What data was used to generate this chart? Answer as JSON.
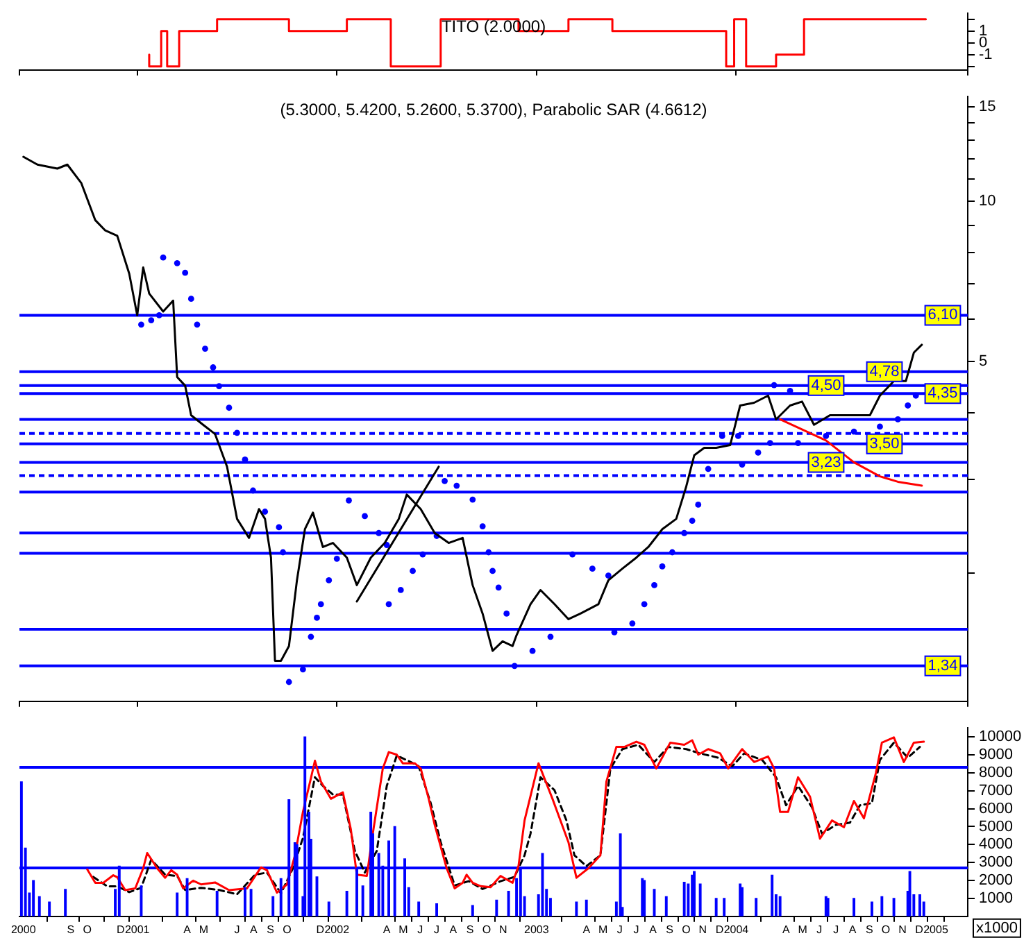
{
  "chart_data": [
    {
      "type": "step",
      "title": "TITO (2.0000)",
      "color": "#ff0000",
      "x": [
        2001.06,
        2001.12,
        2001.15,
        2001.21,
        2001.4,
        2001.76,
        2002.05,
        2002.27,
        2002.52,
        2002.91,
        2003.16,
        2003.38,
        2003.95,
        2003.99,
        2004.05,
        2004.2,
        2004.34,
        2004.73,
        2004.95
      ],
      "values": [
        -1,
        -2,
        1,
        -2,
        1,
        2,
        1,
        2,
        -2,
        2,
        1,
        2,
        1,
        -2,
        2,
        -2,
        -1,
        2,
        2
      ],
      "xlim": [
        2000.41,
        2005.16
      ],
      "ylim": [
        -2.3,
        2.5
      ],
      "yticks": [
        {
          "value": 2,
          "label": null
        },
        1,
        0,
        -1,
        {
          "value": -2,
          "label": null
        }
      ],
      "tick_labels": "y"
    },
    {
      "type": "line",
      "title": "(5.3000, 5.4200, 5.2600, 5.3700), Parabolic SAR (4.6612)",
      "log": "y",
      "xlim": [
        2000.41,
        2005.16
      ],
      "ylim": [
        1.15,
        15.7
      ],
      "yticks": [
        15,
        {
          "value": 14,
          "label": null
        },
        {
          "value": 13,
          "label": null
        },
        {
          "value": 12,
          "label": null
        },
        {
          "value": 11,
          "label": null
        },
        10,
        {
          "value": 9,
          "label": null
        },
        {
          "value": 8,
          "label": null
        },
        {
          "value": 7,
          "label": null
        },
        {
          "value": 6,
          "label": null
        },
        5,
        {
          "value": 4,
          "label": null
        },
        {
          "value": 3,
          "label": null
        },
        {
          "value": 2,
          "label": null
        }
      ],
      "tick_labels": "y",
      "series": [
        {
          "type": "line",
          "color": "#000000",
          "x": [
            2000.43,
            2000.5,
            2000.6,
            2000.65,
            2000.72,
            2000.79,
            2000.84,
            2000.9,
            2000.96,
            2001.0,
            2001.03,
            2001.06,
            2001.13,
            2001.18,
            2001.2,
            2001.24,
            2001.27,
            2001.33,
            2001.39,
            2001.45,
            2001.5,
            2001.56,
            2001.61,
            2001.64,
            2001.67,
            2001.69,
            2001.72,
            2001.76,
            2001.8,
            2001.84,
            2001.88,
            2001.93,
            2001.98,
            2002.05,
            2002.1,
            2002.17,
            2002.24,
            2002.31,
            2002.35,
            2002.42,
            2002.49,
            2002.56,
            2002.63,
            2002.68,
            2002.73,
            2002.78,
            2002.83,
            2002.88,
            2002.9,
            2002.97,
            2003.02,
            2003.09,
            2003.16,
            2003.22,
            2003.31,
            2003.36,
            2003.43,
            2003.5,
            2003.56,
            2003.63,
            2003.7,
            2003.75,
            2003.79,
            2003.84,
            2003.9,
            2003.97,
            2004.02,
            2004.09,
            2004.16,
            2004.2,
            2004.27,
            2004.33,
            2004.39,
            2004.47,
            2004.54,
            2004.6,
            2004.67,
            2004.72,
            2004.79,
            2004.85,
            2004.89,
            2004.93
          ],
          "values": [
            12.1,
            11.7,
            11.5,
            11.7,
            10.8,
            9.2,
            8.8,
            8.6,
            7.3,
            6.1,
            7.5,
            6.7,
            6.2,
            6.5,
            4.67,
            4.5,
            3.96,
            3.8,
            3.65,
            3.17,
            2.53,
            2.33,
            2.64,
            2.53,
            2.14,
            1.37,
            1.37,
            1.46,
            1.94,
            2.42,
            2.6,
            2.24,
            2.28,
            2.14,
            1.9,
            2.14,
            2.28,
            2.53,
            2.81,
            2.64,
            2.38,
            2.28,
            2.33,
            1.9,
            1.68,
            1.43,
            1.49,
            1.46,
            1.53,
            1.75,
            1.86,
            1.75,
            1.64,
            1.68,
            1.75,
            1.94,
            2.04,
            2.14,
            2.24,
            2.42,
            2.53,
            2.91,
            3.33,
            3.44,
            3.44,
            3.48,
            4.13,
            4.18,
            4.31,
            3.89,
            4.13,
            4.2,
            3.8,
            3.96,
            3.96,
            3.96,
            3.96,
            4.31,
            4.59,
            4.59,
            5.19,
            5.37
          ]
        },
        {
          "type": "scatter",
          "color": "#0000ff",
          "marker": "circle",
          "x": [
            2001.02,
            2001.07,
            2001.11,
            2001.13,
            2001.2,
            2001.24,
            2001.27,
            2001.3,
            2001.34,
            2001.38,
            2001.41,
            2001.46,
            2001.5,
            2001.54,
            2001.58,
            2001.64,
            2001.71,
            2001.73,
            2001.76,
            2001.83,
            2001.87,
            2001.9,
            2001.92,
            2001.96,
            2002.0,
            2002.06,
            2002.14,
            2002.21,
            2002.25,
            2002.26,
            2002.32,
            2002.38,
            2002.43,
            2002.5,
            2002.54,
            2002.6,
            2002.68,
            2002.73,
            2002.76,
            2002.78,
            2002.81,
            2002.85,
            2002.89,
            2002.98,
            2003.07,
            2003.18,
            2003.28,
            2003.36,
            2003.39,
            2003.48,
            2003.54,
            2003.59,
            2003.63,
            2003.68,
            2003.74,
            2003.78,
            2003.81,
            2003.86,
            2003.93,
            2004.01,
            2004.03,
            2004.11,
            2004.17,
            2004.19,
            2004.27,
            2004.31,
            2004.45,
            2004.59,
            2004.72,
            2004.81,
            2004.86,
            2004.9
          ],
          "values": [
            5.86,
            5.97,
            6.1,
            7.83,
            7.64,
            7.33,
            6.55,
            5.86,
            5.28,
            4.87,
            4.49,
            4.09,
            3.67,
            3.27,
            2.86,
            2.61,
            2.44,
            2.19,
            1.25,
            1.32,
            1.52,
            1.65,
            1.75,
            1.94,
            2.13,
            2.74,
            2.56,
            2.38,
            2.26,
            1.75,
            1.86,
            2.02,
            2.17,
            2.35,
            2.98,
            2.92,
            2.75,
            2.45,
            2.19,
            2.02,
            1.88,
            1.68,
            1.34,
            1.43,
            1.52,
            2.17,
            2.04,
            1.98,
            1.55,
            1.61,
            1.75,
            1.9,
            2.06,
            2.19,
            2.38,
            2.51,
            2.69,
            3.14,
            3.62,
            3.62,
            3.2,
            3.37,
            3.51,
            4.51,
            4.4,
            3.51,
            3.62,
            3.69,
            3.77,
            3.89,
            4.13,
            4.31
          ]
        },
        {
          "type": "line",
          "color": "#000000",
          "x": [
            2002.1,
            2002.51
          ],
          "values": [
            1.77,
            3.17
          ]
        },
        {
          "type": "line",
          "color": "#ff0000",
          "x": [
            2004.22,
            2004.45,
            2004.59,
            2004.72,
            2004.81,
            2004.93
          ],
          "values": [
            3.89,
            3.55,
            3.23,
            3.04,
            2.97,
            2.92
          ]
        }
      ],
      "ref_lines": [
        {
          "axis": "y",
          "value": 6.1,
          "label": "6,10",
          "color": "#0000ff"
        },
        {
          "axis": "y",
          "value": 4.78,
          "label": "4,78",
          "color": "#0000ff"
        },
        {
          "axis": "y",
          "value": 4.5,
          "label": "4,50",
          "color": "#0000ff"
        },
        {
          "axis": "y",
          "value": 4.35,
          "label": "4,35",
          "color": "#0000ff"
        },
        {
          "axis": "y",
          "value": 3.89,
          "color": "#0000ff"
        },
        {
          "axis": "y",
          "value": 3.66,
          "color": "#0000ff",
          "line_style": "dashed"
        },
        {
          "axis": "y",
          "value": 3.5,
          "label": "3,50",
          "color": "#0000ff"
        },
        {
          "axis": "y",
          "value": 3.23,
          "label": "3,23",
          "color": "#0000ff"
        },
        {
          "axis": "y",
          "value": 3.05,
          "color": "#0000ff",
          "line_style": "dashed"
        },
        {
          "axis": "y",
          "value": 2.84,
          "color": "#0000ff"
        },
        {
          "axis": "y",
          "value": 2.38,
          "color": "#0000ff"
        },
        {
          "axis": "y",
          "value": 2.18,
          "color": "#0000ff"
        },
        {
          "axis": "y",
          "value": 1.57,
          "color": "#0000ff"
        },
        {
          "axis": "y",
          "value": 1.34,
          "label": "1,34",
          "color": "#0000ff"
        }
      ]
    },
    {
      "type": "bar",
      "xlim": [
        2000.41,
        2005.16
      ],
      "ylim": [
        0,
        10500
      ],
      "yticks": [
        1000,
        2000,
        3000,
        4000,
        5000,
        6000,
        7000,
        8000,
        9000,
        10000
      ],
      "xticks": [
        {
          "value": 2000.43,
          "label": "2000"
        },
        {
          "value": 2000.667,
          "label": "S"
        },
        {
          "value": 2000.75,
          "label": "O"
        },
        {
          "value": 2000.917,
          "label": "D"
        },
        2001,
        {
          "value": 2001.25,
          "label": "A"
        },
        {
          "value": 2001.333,
          "label": "M"
        },
        {
          "value": 2001.5,
          "label": "J"
        },
        {
          "value": 2001.583,
          "label": "A"
        },
        {
          "value": 2001.667,
          "label": "S"
        },
        {
          "value": 2001.75,
          "label": "O"
        },
        {
          "value": 2001.917,
          "label": "D"
        },
        2002,
        {
          "value": 2002.25,
          "label": "A"
        },
        {
          "value": 2002.333,
          "label": "M"
        },
        {
          "value": 2002.417,
          "label": "J"
        },
        {
          "value": 2002.5,
          "label": "J"
        },
        {
          "value": 2002.583,
          "label": "A"
        },
        {
          "value": 2002.667,
          "label": "S"
        },
        {
          "value": 2002.75,
          "label": "O"
        },
        {
          "value": 2002.833,
          "label": "N"
        },
        2003,
        {
          "value": 2003.25,
          "label": "A"
        },
        {
          "value": 2003.333,
          "label": "M"
        },
        {
          "value": 2003.417,
          "label": "J"
        },
        {
          "value": 2003.5,
          "label": "J"
        },
        {
          "value": 2003.583,
          "label": "A"
        },
        {
          "value": 2003.667,
          "label": "S"
        },
        {
          "value": 2003.75,
          "label": "O"
        },
        {
          "value": 2003.833,
          "label": "N"
        },
        {
          "value": 2003.917,
          "label": "D"
        },
        2004,
        {
          "value": 2004.25,
          "label": "A"
        },
        {
          "value": 2004.333,
          "label": "M"
        },
        {
          "value": 2004.417,
          "label": "J"
        },
        {
          "value": 2004.5,
          "label": "J"
        },
        {
          "value": 2004.583,
          "label": "A"
        },
        {
          "value": 2004.667,
          "label": "S"
        },
        {
          "value": 2004.75,
          "label": "O"
        },
        {
          "value": 2004.833,
          "label": "N"
        },
        {
          "value": 2004.917,
          "label": "D"
        },
        2005
      ],
      "annotations": [
        "x1000"
      ],
      "series": [
        {
          "type": "bar",
          "color": "#0000ff",
          "x": [
            2000.42,
            2000.44,
            2000.46,
            2000.48,
            2000.51,
            2000.56,
            2000.64,
            2000.89,
            2000.91,
            2001.02,
            2001.2,
            2001.25,
            2001.4,
            2001.54,
            2001.57,
            2001.68,
            2001.72,
            2001.76,
            2001.79,
            2001.8,
            2001.83,
            2001.84,
            2001.86,
            2001.87,
            2001.9,
            2001.96,
            2002.05,
            2002.1,
            2002.13,
            2002.17,
            2002.18,
            2002.21,
            2002.23,
            2002.26,
            2002.29,
            2002.34,
            2002.36,
            2002.41,
            2002.5,
            2002.68,
            2002.8,
            2002.86,
            2002.9,
            2002.92,
            2002.94,
            2003.01,
            2003.03,
            2003.05,
            2003.07,
            2003.2,
            2003.25,
            2003.4,
            2003.42,
            2003.43,
            2003.53,
            2003.54,
            2003.59,
            2003.65,
            2003.74,
            2003.76,
            2003.78,
            2003.79,
            2003.82,
            2003.9,
            2003.94,
            2004.02,
            2004.03,
            2004.1,
            2004.18,
            2004.2,
            2004.22,
            2004.45,
            2004.46,
            2004.59,
            2004.68,
            2004.73,
            2004.79,
            2004.86,
            2004.87,
            2004.89,
            2004.92,
            2004.94
          ],
          "values": [
            7500,
            3800,
            1300,
            2000,
            1100,
            800,
            1500,
            1500,
            2800,
            1700,
            1300,
            2100,
            1400,
            1600,
            1500,
            1100,
            2100,
            6500,
            4100,
            4000,
            1100,
            10000,
            5800,
            4300,
            2200,
            800,
            1400,
            2700,
            1700,
            5800,
            4600,
            3500,
            2800,
            4200,
            5000,
            3200,
            1600,
            800,
            700,
            600,
            900,
            1400,
            2100,
            2600,
            1100,
            1200,
            3500,
            1500,
            1000,
            800,
            900,
            800,
            4600,
            500,
            2100,
            2000,
            1500,
            1100,
            1900,
            1800,
            2300,
            2500,
            1800,
            1000,
            1000,
            1800,
            1600,
            1000,
            2300,
            1200,
            1100,
            1100,
            1000,
            1000,
            800,
            1100,
            1000,
            1400,
            2500,
            1200,
            1200,
            800
          ]
        },
        {
          "type": "line",
          "color": "#ff0000",
          "x": [
            2000.75,
            2000.79,
            2000.83,
            2000.88,
            2000.9,
            2000.94,
            2000.99,
            2001.03,
            2001.05,
            2001.1,
            2001.14,
            2001.17,
            2001.2,
            2001.23,
            2001.28,
            2001.32,
            2001.39,
            2001.46,
            2001.55,
            2001.62,
            2001.65,
            2001.7,
            2001.75,
            2001.79,
            2001.83,
            2001.87,
            2001.89,
            2001.92,
            2001.97,
            2002.03,
            2002.07,
            2002.1,
            2002.15,
            2002.18,
            2002.23,
            2002.26,
            2002.3,
            2002.33,
            2002.39,
            2002.42,
            2002.46,
            2002.49,
            2002.55,
            2002.59,
            2002.63,
            2002.65,
            2002.68,
            2002.72,
            2002.77,
            2002.82,
            2002.88,
            2002.91,
            2002.94,
            2003.01,
            2003.08,
            2003.12,
            2003.16,
            2003.2,
            2003.26,
            2003.32,
            2003.35,
            2003.4,
            2003.44,
            2003.5,
            2003.54,
            2003.6,
            2003.67,
            2003.74,
            2003.78,
            2003.81,
            2003.86,
            2003.92,
            2003.96,
            2004.03,
            2004.09,
            2004.16,
            2004.19,
            2004.22,
            2004.26,
            2004.31,
            2004.37,
            2004.42,
            2004.48,
            2004.54,
            2004.59,
            2004.64,
            2004.7,
            2004.73,
            2004.79,
            2004.84,
            2004.89,
            2004.94
          ],
          "values": [
            2610,
            1870,
            1870,
            2290,
            2180,
            1460,
            1560,
            2680,
            3530,
            2680,
            2150,
            2570,
            2320,
            1560,
            1990,
            1780,
            1890,
            1460,
            1560,
            2730,
            2570,
            1320,
            1780,
            3400,
            5820,
            7700,
            8670,
            7510,
            6550,
            6910,
            4850,
            2320,
            2250,
            4610,
            8240,
            9150,
            9010,
            8530,
            8530,
            8240,
            6550,
            5100,
            2680,
            1560,
            1870,
            2320,
            1870,
            1680,
            1630,
            2250,
            1870,
            2820,
            5340,
            8530,
            6550,
            5340,
            4130,
            2150,
            2680,
            3400,
            7510,
            9440,
            9440,
            9730,
            9560,
            8240,
            9680,
            9560,
            9810,
            9010,
            9320,
            9080,
            8240,
            9320,
            8600,
            8910,
            8240,
            5820,
            5820,
            7750,
            6670,
            4330,
            5340,
            4970,
            6430,
            5460,
            7990,
            9680,
            9970,
            8600,
            9680,
            9730
          ]
        },
        {
          "type": "line",
          "color": "#000000",
          "line_style": "dashed",
          "x": [
            2000.78,
            2000.85,
            2000.9,
            2000.96,
            2001.02,
            2001.07,
            2001.14,
            2001.2,
            2001.24,
            2001.32,
            2001.41,
            2001.5,
            2001.59,
            2001.65,
            2001.72,
            2001.78,
            2001.83,
            2001.89,
            2001.93,
            2001.98,
            2002.03,
            2002.09,
            2002.14,
            2002.2,
            2002.25,
            2002.3,
            2002.37,
            2002.41,
            2002.47,
            2002.52,
            2002.59,
            2002.66,
            2002.73,
            2002.82,
            2002.89,
            2002.94,
            2002.97,
            2003.02,
            2003.09,
            2003.15,
            2003.19,
            2003.25,
            2003.32,
            2003.37,
            2003.43,
            2003.51,
            2003.59,
            2003.66,
            2003.75,
            2003.82,
            2003.91,
            2003.98,
            2004.04,
            2004.13,
            2004.2,
            2004.25,
            2004.31,
            2004.38,
            2004.43,
            2004.5,
            2004.57,
            2004.62,
            2004.68,
            2004.72,
            2004.79,
            2004.86,
            2004.92
          ],
          "values": [
            2200,
            1670,
            1670,
            1350,
            1590,
            3160,
            2320,
            2250,
            1470,
            1590,
            1470,
            1230,
            2320,
            2440,
            1280,
            2680,
            4370,
            7750,
            7270,
            6790,
            6790,
            3650,
            2440,
            3650,
            7270,
            8960,
            8600,
            8360,
            6310,
            4130,
            1720,
            1960,
            1520,
            1960,
            2200,
            3400,
            4610,
            7750,
            7030,
            5340,
            3400,
            2800,
            3400,
            8240,
            9320,
            9560,
            8600,
            9440,
            9320,
            9080,
            8840,
            8360,
            9080,
            8720,
            7750,
            6190,
            7270,
            6070,
            4610,
            5100,
            5220,
            6190,
            6310,
            8720,
            9680,
            8840,
            9440
          ]
        }
      ],
      "ref_lines": [
        {
          "axis": "y",
          "value": 8300,
          "color": "#0000ff"
        },
        {
          "axis": "y",
          "value": 2700,
          "color": "#0000ff"
        }
      ]
    }
  ]
}
